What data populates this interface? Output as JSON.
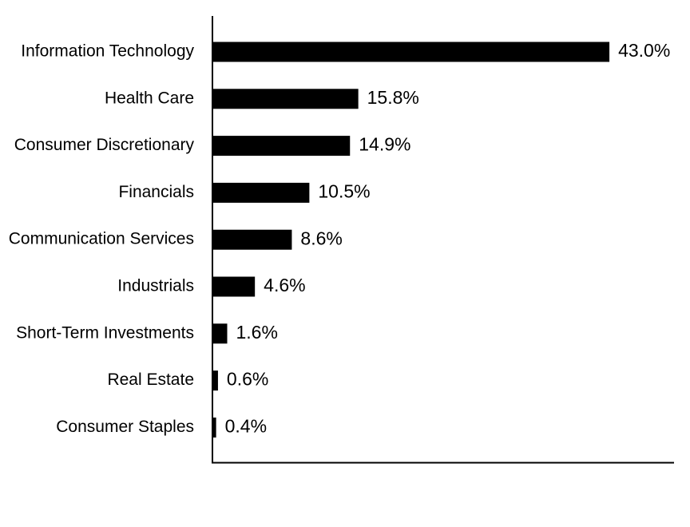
{
  "chart_data": {
    "type": "bar",
    "orientation": "horizontal",
    "categories": [
      "Information Technology",
      "Health Care",
      "Consumer Discretionary",
      "Financials",
      "Communication Services",
      "Industrials",
      "Short-Term Investments",
      "Real Estate",
      "Consumer Staples"
    ],
    "values": [
      43.0,
      15.8,
      14.9,
      10.5,
      8.6,
      4.6,
      1.6,
      0.6,
      0.4
    ],
    "value_labels": [
      "43.0%",
      "15.8%",
      "14.9%",
      "10.5%",
      "8.6%",
      "4.6%",
      "1.6%",
      "0.6%",
      "0.4%"
    ],
    "xlim": [
      0,
      50
    ],
    "bar_color": "#000000",
    "grid": false,
    "legend": "none"
  }
}
